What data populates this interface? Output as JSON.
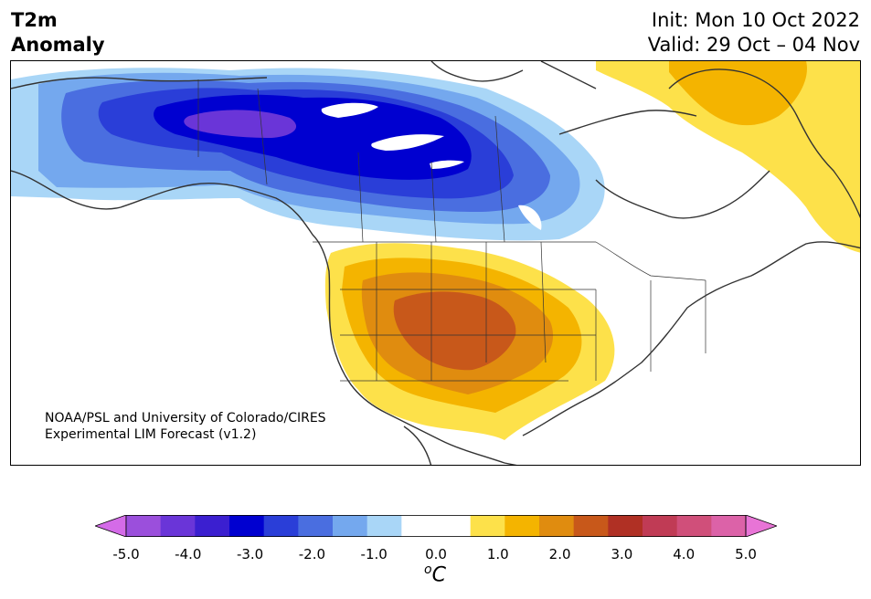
{
  "header": {
    "title_line1": "T2m",
    "title_line2": "Anomaly",
    "init_text": "Init: Mon 10 Oct 2022",
    "valid_text": "Valid: 29 Oct – 04 Nov"
  },
  "credit": {
    "line1": "NOAA/PSL and University of Colorado/CIRES",
    "line2": "Experimental LIM Forecast (v1.2)"
  },
  "colorbar": {
    "unit_main": "C",
    "unit_sup": "o",
    "colors": [
      "#d46be8",
      "#9b4fdc",
      "#6a35d8",
      "#3b1fd0",
      "#0000d0",
      "#2a3ed8",
      "#4a6ee0",
      "#74a8ee",
      "#a9d6f7",
      "#ffffff",
      "#ffffff",
      "#fde14a",
      "#f4b400",
      "#e08c0f",
      "#c8581a",
      "#b03024",
      "#c03b55",
      "#d04f7a",
      "#dc62a8",
      "#e874d6"
    ],
    "ticks": [
      "-5.0",
      "-4.0",
      "-3.0",
      "-2.0",
      "-1.0",
      "0.0",
      "1.0",
      "2.0",
      "3.0",
      "4.0",
      "5.0"
    ]
  },
  "legend_colors": {
    "cold_core": "#6a35d8",
    "cold_strong": "#0000d0",
    "cold_medium": "#2a3ed8",
    "cold_light": "#4a6ee0",
    "cold_pale": "#74a8ee",
    "cold_faint": "#a9d6f7",
    "warm_faint": "#fde14a",
    "warm_light": "#f4b400",
    "warm_medium": "#e08c0f",
    "warm_strong": "#c8581a"
  }
}
